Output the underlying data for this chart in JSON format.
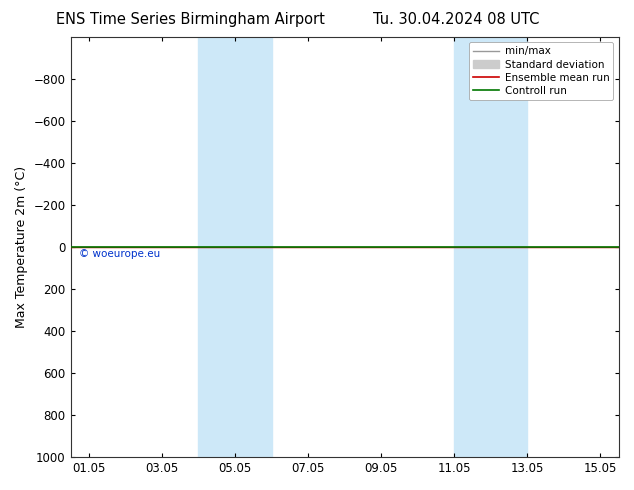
{
  "title_left": "ENS Time Series Birmingham Airport",
  "title_right": "Tu. 30.04.2024 08 UTC",
  "ylabel": "Max Temperature 2m (°C)",
  "xlabel": "",
  "ylim_top": -1000,
  "ylim_bottom": 1000,
  "yticks": [
    -800,
    -600,
    -400,
    -200,
    0,
    200,
    400,
    600,
    800,
    1000
  ],
  "xtick_labels": [
    "01.05",
    "03.05",
    "05.05",
    "07.05",
    "09.05",
    "11.05",
    "13.05",
    "15.05"
  ],
  "xtick_positions": [
    1,
    3,
    5,
    7,
    9,
    11,
    13,
    15
  ],
  "xlim": [
    0.5,
    15.5
  ],
  "shaded_bands": [
    {
      "x_start": 4.0,
      "x_end": 5.0,
      "color": "#cde8f8"
    },
    {
      "x_start": 5.0,
      "x_end": 6.0,
      "color": "#cde8f8"
    },
    {
      "x_start": 11.0,
      "x_end": 12.0,
      "color": "#cde8f8"
    },
    {
      "x_start": 12.0,
      "x_end": 13.0,
      "color": "#cde8f8"
    }
  ],
  "control_run_color": "#007700",
  "ensemble_mean_color": "#cc0000",
  "minmax_color": "#999999",
  "stddev_color": "#cccccc",
  "background_color": "#ffffff",
  "plot_bg_color": "#ffffff",
  "watermark": "© woeurope.eu",
  "watermark_color": "#0033cc",
  "title_fontsize": 10.5,
  "axis_label_fontsize": 9,
  "tick_fontsize": 8.5,
  "legend_fontsize": 7.5,
  "legend_entries": [
    "min/max",
    "Standard deviation",
    "Ensemble mean run",
    "Controll run"
  ],
  "legend_colors": [
    "#999999",
    "#cccccc",
    "#cc0000",
    "#007700"
  ]
}
